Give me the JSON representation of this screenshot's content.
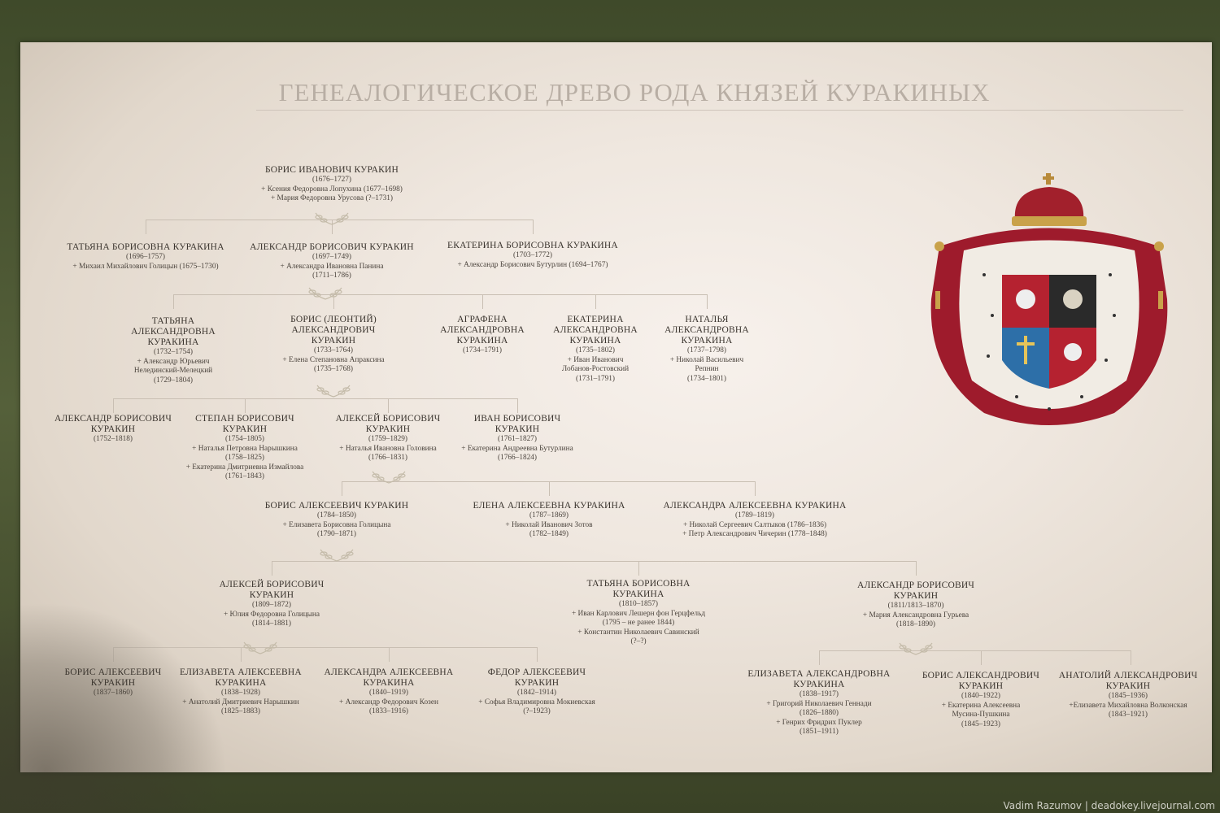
{
  "title": "ГЕНЕАЛОГИЧЕСКОЕ ДРЕВО РОДА КНЯЗЕЙ КУРАКИНЫХ",
  "credit": "Vadim Razumov | deadokey.livejournal.com",
  "colors": {
    "board": "#efe7df",
    "wall": "#4a5330",
    "text": "#3a342e",
    "title": "#b8aea4",
    "mantle": "#9e1b2c"
  },
  "coat_of_arms": "coat-of-arms-emblem",
  "persons": [
    {
      "name": [
        "БОРИС ИВАНОВИЧ КУРАКИН"
      ],
      "lines": [
        "(1676–1727)",
        "+ Ксения Федоровна Лопухина (1677–1698)",
        "+ Мария Федоровна Урусова (?–1731)"
      ]
    },
    {
      "name": [
        "ТАТЬЯНА БОРИСОВНА КУРАКИНА"
      ],
      "lines": [
        "(1696–1757)",
        "+ Михаил Михайлович Голицын (1675–1730)"
      ]
    },
    {
      "name": [
        "АЛЕКСАНДР БОРИСОВИЧ КУРАКИН"
      ],
      "lines": [
        "(1697–1749)",
        "+ Александра Ивановна Панина",
        "(1711–1786)"
      ]
    },
    {
      "name": [
        "ЕКАТЕРИНА БОРИСОВНА КУРАКИНА"
      ],
      "lines": [
        "(1703–1772)",
        "+ Александр Борисович Бутурлин (1694–1767)"
      ]
    },
    {
      "name": [
        "ТАТЬЯНА",
        "АЛЕКСАНДРОВНА",
        "КУРАКИНА"
      ],
      "lines": [
        "(1732–1754)",
        "+ Александр Юрьевич",
        "Нелединский-Мелецкий",
        "(1729–1804)"
      ]
    },
    {
      "name": [
        "БОРИС (ЛЕОНТИЙ)",
        "АЛЕКСАНДРОВИЧ",
        "КУРАКИН"
      ],
      "lines": [
        "(1733–1764)",
        "+ Елена Степановна Апраксина",
        "(1735–1768)"
      ]
    },
    {
      "name": [
        "АГРАФЕНА",
        "АЛЕКСАНДРОВНА",
        "КУРАКИНА"
      ],
      "lines": [
        "(1734–1791)"
      ]
    },
    {
      "name": [
        "ЕКАТЕРИНА",
        "АЛЕКСАНДРОВНА",
        "КУРАКИНА"
      ],
      "lines": [
        "(1735–1802)",
        "+ Иван Иванович",
        "Лобанов-Ростовский",
        "(1731–1791)"
      ]
    },
    {
      "name": [
        "НАТАЛЬЯ",
        "АЛЕКСАНДРОВНА",
        "КУРАКИНА"
      ],
      "lines": [
        "(1737–1798)",
        "+ Николай Васильевич",
        "Репнин",
        "(1734–1801)"
      ]
    },
    {
      "name": [
        "АЛЕКСАНДР БОРИСОВИЧ",
        "КУРАКИН"
      ],
      "lines": [
        "(1752–1818)"
      ]
    },
    {
      "name": [
        "СТЕПАН БОРИСОВИЧ",
        "КУРАКИН"
      ],
      "lines": [
        "(1754–1805)",
        "+ Наталья Петровна Нарышкина",
        "(1758–1825)",
        "+ Екатерина Дмитриевна Измайлова",
        "(1761–1843)"
      ]
    },
    {
      "name": [
        "АЛЕКСЕЙ БОРИСОВИЧ",
        "КУРАКИН"
      ],
      "lines": [
        "(1759–1829)",
        "+ Наталья Ивановна Головина",
        "(1766–1831)"
      ]
    },
    {
      "name": [
        "ИВАН БОРИСОВИЧ",
        "КУРАКИН"
      ],
      "lines": [
        "(1761–1827)",
        "+ Екатерина Андреевна Бутурлина",
        "(1766–1824)"
      ]
    },
    {
      "name": [
        "БОРИС АЛЕКСЕЕВИЧ КУРАКИН"
      ],
      "lines": [
        "(1784–1850)",
        "+ Елизавета Борисовна Голицына",
        "(1790–1871)"
      ]
    },
    {
      "name": [
        "ЕЛЕНА АЛЕКСЕЕВНА КУРАКИНА"
      ],
      "lines": [
        "(1787–1869)",
        "+ Николай Иванович Зотов",
        "(1782–1849)"
      ]
    },
    {
      "name": [
        "АЛЕКСАНДРА АЛЕКСЕЕВНА КУРАКИНА"
      ],
      "lines": [
        "(1789–1819)",
        "+ Николай Сергеевич Салтыков (1786–1836)",
        "+ Петр Александрович Чичерин (1778–1848)"
      ]
    },
    {
      "name": [
        "АЛЕКСЕЙ БОРИСОВИЧ",
        "КУРАКИН"
      ],
      "lines": [
        "(1809–1872)",
        "+ Юлия Федоровна Голицына",
        "(1814–1881)"
      ]
    },
    {
      "name": [
        "ТАТЬЯНА БОРИСОВНА",
        "КУРАКИНА"
      ],
      "lines": [
        "(1810–1857)",
        "+ Иван Карлович Лешерн фон Герцфельд",
        "(1795 – не ранее 1844)",
        "+ Константин Николаевич Савинский",
        "(?–?)"
      ]
    },
    {
      "name": [
        "АЛЕКСАНДР БОРИСОВИЧ",
        "КУРАКИН"
      ],
      "lines": [
        "(1811/1813–1870)",
        "+ Мария Александровна Гурьева",
        "(1818–1890)"
      ]
    },
    {
      "name": [
        "БОРИС АЛЕКСЕЕВИЧ",
        "КУРАКИН"
      ],
      "lines": [
        "(1837–1860)"
      ]
    },
    {
      "name": [
        "ЕЛИЗАВЕТА АЛЕКСЕЕВНА",
        "КУРАКИНА"
      ],
      "lines": [
        "(1838–1928)",
        "+ Анатолий Дмитриевич Нарышкин",
        "(1825–1883)"
      ]
    },
    {
      "name": [
        "АЛЕКСАНДРА АЛЕКСЕЕВНА",
        "КУРАКИНА"
      ],
      "lines": [
        "(1840–1919)",
        "+ Александр Федорович Козен",
        "(1833–1916)"
      ]
    },
    {
      "name": [
        "ФЕДОР АЛЕКСЕЕВИЧ",
        "КУРАКИН"
      ],
      "lines": [
        "(1842–1914)",
        "+ Софья Владимировна Мокиевская",
        "(?–1923)"
      ]
    },
    {
      "name": [
        "ЕЛИЗАВЕТА АЛЕКСАНДРОВНА",
        "КУРАКИНА"
      ],
      "lines": [
        "(1838–1917)",
        "+ Григорий Николаевич Геннади",
        "(1826–1880)",
        "+ Генрих Фридрих Пуклер",
        "(1851–1911)"
      ]
    },
    {
      "name": [
        "БОРИС АЛЕКСАНДРОВИЧ",
        "КУРАКИН"
      ],
      "lines": [
        "(1840–1922)",
        "+ Екатерина Алексеевна",
        "Мусина-Пушкина",
        "(1845–1923)"
      ]
    },
    {
      "name": [
        "АНАТОЛИЙ АЛЕКСАНДРОВИЧ",
        "КУРАКИН"
      ],
      "lines": [
        "(1845–1936)",
        "+Елизавета Михайловна Волконская",
        "(1843–1921)"
      ]
    }
  ]
}
